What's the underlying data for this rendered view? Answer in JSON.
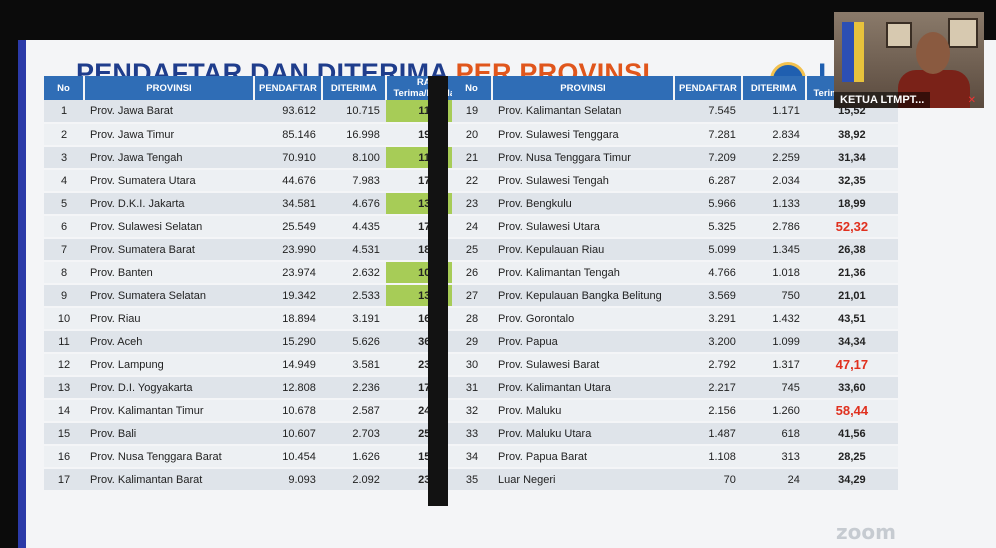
{
  "slide": {
    "title_main": "PENDAFTAR DAN DITERIMA ",
    "title_accent": "PER PROVINSI",
    "logo_text": "L"
  },
  "video": {
    "participant_label": "KETUA LTMPT...",
    "mic_icon": "muted-mic-icon"
  },
  "watermark": "zoom",
  "colors": {
    "header_blue": "#2f6db6",
    "highlight_green": "#a7cc57",
    "accent_red": "#e0301e",
    "title_blue": "#1f3d8c",
    "title_orange": "#e0561c"
  },
  "headers": [
    "No",
    "PROVINSI",
    "PENDAFTAR",
    "DITERIMA",
    "RASIO Terima/Pendaftar"
  ],
  "left_rows": [
    {
      "no": "1",
      "prov": "Prov. Jawa Barat",
      "pendaftar": "93.612",
      "diterima": "10.715",
      "rasio": "11,45",
      "hl": true,
      "red": false
    },
    {
      "no": "2",
      "prov": "Prov. Jawa Timur",
      "pendaftar": "85.146",
      "diterima": "16.998",
      "rasio": "19,96",
      "hl": false,
      "red": false
    },
    {
      "no": "3",
      "prov": "Prov. Jawa Tengah",
      "pendaftar": "70.910",
      "diterima": "8.100",
      "rasio": "11,42",
      "hl": true,
      "red": false
    },
    {
      "no": "4",
      "prov": "Prov. Sumatera Utara",
      "pendaftar": "44.676",
      "diterima": "7.983",
      "rasio": "17,87",
      "hl": false,
      "red": false
    },
    {
      "no": "5",
      "prov": "Prov. D.K.I. Jakarta",
      "pendaftar": "34.581",
      "diterima": "4.676",
      "rasio": "13,52",
      "hl": true,
      "red": false
    },
    {
      "no": "6",
      "prov": "Prov. Sulawesi Selatan",
      "pendaftar": "25.549",
      "diterima": "4.435",
      "rasio": "17,36",
      "hl": false,
      "red": false
    },
    {
      "no": "7",
      "prov": "Prov. Sumatera Barat",
      "pendaftar": "23.990",
      "diterima": "4.531",
      "rasio": "18,89",
      "hl": false,
      "red": false
    },
    {
      "no": "8",
      "prov": "Prov. Banten",
      "pendaftar": "23.974",
      "diterima": "2.632",
      "rasio": "10,98",
      "hl": true,
      "red": false
    },
    {
      "no": "9",
      "prov": "Prov. Sumatera Selatan",
      "pendaftar": "19.342",
      "diterima": "2.533",
      "rasio": "13,10",
      "hl": true,
      "red": false
    },
    {
      "no": "10",
      "prov": "Prov. Riau",
      "pendaftar": "18.894",
      "diterima": "3.191",
      "rasio": "16,89",
      "hl": false,
      "red": false
    },
    {
      "no": "11",
      "prov": "Prov. Aceh",
      "pendaftar": "15.290",
      "diterima": "5.626",
      "rasio": "36,80",
      "hl": false,
      "red": false
    },
    {
      "no": "12",
      "prov": "Prov. Lampung",
      "pendaftar": "14.949",
      "diterima": "3.581",
      "rasio": "23,95",
      "hl": false,
      "red": false
    },
    {
      "no": "13",
      "prov": "Prov. D.I. Yogyakarta",
      "pendaftar": "12.808",
      "diterima": "2.236",
      "rasio": "17,46",
      "hl": false,
      "red": false
    },
    {
      "no": "14",
      "prov": "Prov. Kalimantan Timur",
      "pendaftar": "10.678",
      "diterima": "2.587",
      "rasio": "24,23",
      "hl": false,
      "red": false
    },
    {
      "no": "15",
      "prov": "Prov. Bali",
      "pendaftar": "10.607",
      "diterima": "2.703",
      "rasio": "25,48",
      "hl": false,
      "red": false
    },
    {
      "no": "16",
      "prov": "Prov. Nusa Tenggara Barat",
      "pendaftar": "10.454",
      "diterima": "1.626",
      "rasio": "15,55",
      "hl": false,
      "red": false
    },
    {
      "no": "17",
      "prov": "Prov. Kalimantan Barat",
      "pendaftar": "9.093",
      "diterima": "2.092",
      "rasio": "23,01",
      "hl": false,
      "red": false
    }
  ],
  "right_rows": [
    {
      "no": "19",
      "prov": "Prov. Kalimantan Selatan",
      "pendaftar": "7.545",
      "diterima": "1.171",
      "rasio": "15,52",
      "red": false
    },
    {
      "no": "20",
      "prov": "Prov. Sulawesi Tenggara",
      "pendaftar": "7.281",
      "diterima": "2.834",
      "rasio": "38,92",
      "red": false
    },
    {
      "no": "21",
      "prov": "Prov. Nusa Tenggara Timur",
      "pendaftar": "7.209",
      "diterima": "2.259",
      "rasio": "31,34",
      "red": false
    },
    {
      "no": "22",
      "prov": "Prov. Sulawesi Tengah",
      "pendaftar": "6.287",
      "diterima": "2.034",
      "rasio": "32,35",
      "red": false
    },
    {
      "no": "23",
      "prov": "Prov. Bengkulu",
      "pendaftar": "5.966",
      "diterima": "1.133",
      "rasio": "18,99",
      "red": false
    },
    {
      "no": "24",
      "prov": "Prov. Sulawesi Utara",
      "pendaftar": "5.325",
      "diterima": "2.786",
      "rasio": "52,32",
      "red": true
    },
    {
      "no": "25",
      "prov": "Prov. Kepulauan Riau",
      "pendaftar": "5.099",
      "diterima": "1.345",
      "rasio": "26,38",
      "red": false
    },
    {
      "no": "26",
      "prov": "Prov. Kalimantan Tengah",
      "pendaftar": "4.766",
      "diterima": "1.018",
      "rasio": "21,36",
      "red": false
    },
    {
      "no": "27",
      "prov": "Prov. Kepulauan Bangka Belitung",
      "pendaftar": "3.569",
      "diterima": "750",
      "rasio": "21,01",
      "red": false
    },
    {
      "no": "28",
      "prov": "Prov. Gorontalo",
      "pendaftar": "3.291",
      "diterima": "1.432",
      "rasio": "43,51",
      "red": false
    },
    {
      "no": "29",
      "prov": "Prov. Papua",
      "pendaftar": "3.200",
      "diterima": "1.099",
      "rasio": "34,34",
      "red": false
    },
    {
      "no": "30",
      "prov": "Prov. Sulawesi Barat",
      "pendaftar": "2.792",
      "diterima": "1.317",
      "rasio": "47,17",
      "red": true
    },
    {
      "no": "31",
      "prov": "Prov. Kalimantan Utara",
      "pendaftar": "2.217",
      "diterima": "745",
      "rasio": "33,60",
      "red": false
    },
    {
      "no": "32",
      "prov": "Prov. Maluku",
      "pendaftar": "2.156",
      "diterima": "1.260",
      "rasio": "58,44",
      "red": true
    },
    {
      "no": "33",
      "prov": "Prov. Maluku Utara",
      "pendaftar": "1.487",
      "diterima": "618",
      "rasio": "41,56",
      "red": false
    },
    {
      "no": "34",
      "prov": "Prov. Papua Barat",
      "pendaftar": "1.108",
      "diterima": "313",
      "rasio": "28,25",
      "red": false
    },
    {
      "no": "35",
      "prov": "Luar Negeri",
      "pendaftar": "70",
      "diterima": "24",
      "rasio": "34,29",
      "red": false
    }
  ]
}
